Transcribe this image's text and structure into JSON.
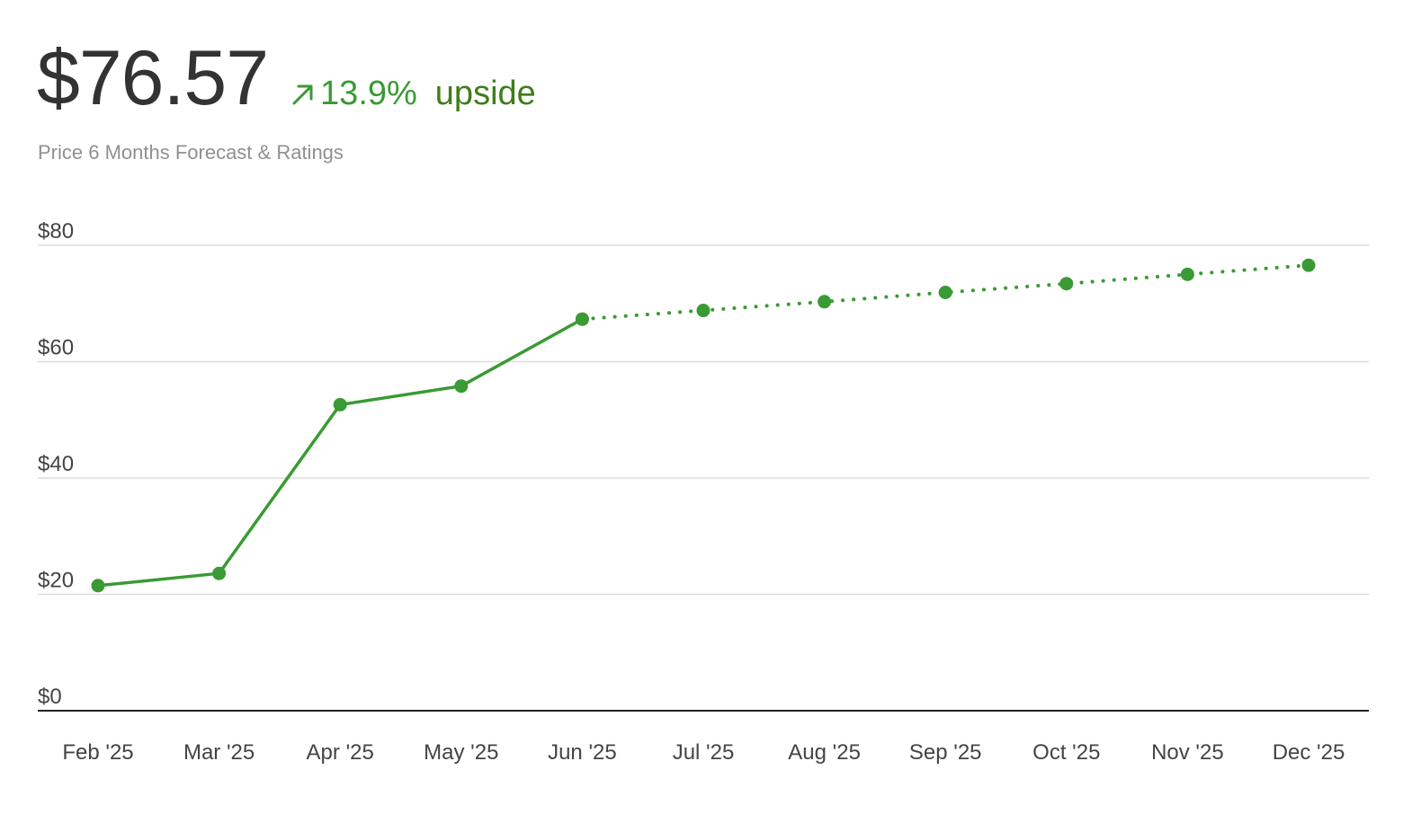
{
  "header": {
    "price": "$76.57",
    "change_percent": "13.9%",
    "change_direction": "up",
    "upside_label": "upside",
    "subtitle": "Price 6 Months Forecast & Ratings"
  },
  "colors": {
    "accent_green": "#3a9a34",
    "upside_text": "#3f7d1a",
    "price_text": "#333333",
    "subtitle_text": "#909090",
    "grid": "#dddddd",
    "axis": "#222222"
  },
  "icons": {
    "change_arrow": "arrow-up-right-icon"
  },
  "chart_data": {
    "type": "line",
    "title": "",
    "xlabel": "",
    "ylabel": "",
    "categories": [
      "Feb '25",
      "Mar '25",
      "Apr '25",
      "May '25",
      "Jun '25",
      "Jul '25",
      "Aug '25",
      "Sep '25",
      "Oct '25",
      "Nov '25",
      "Dec '25"
    ],
    "ylim": [
      0,
      80
    ],
    "yticks": [
      0,
      20,
      40,
      60,
      80
    ],
    "ytick_labels": [
      "$0",
      "$20",
      "$40",
      "$60",
      "$80"
    ],
    "grid": true,
    "legend": "none",
    "series": [
      {
        "style": "solid",
        "values": [
          21.5,
          23.6,
          52.6,
          55.8,
          67.3,
          null,
          null,
          null,
          null,
          null,
          null
        ]
      },
      {
        "style": "dotted",
        "values": [
          null,
          null,
          null,
          null,
          67.3,
          68.8,
          70.3,
          71.9,
          73.4,
          75.0,
          76.57
        ]
      }
    ]
  }
}
